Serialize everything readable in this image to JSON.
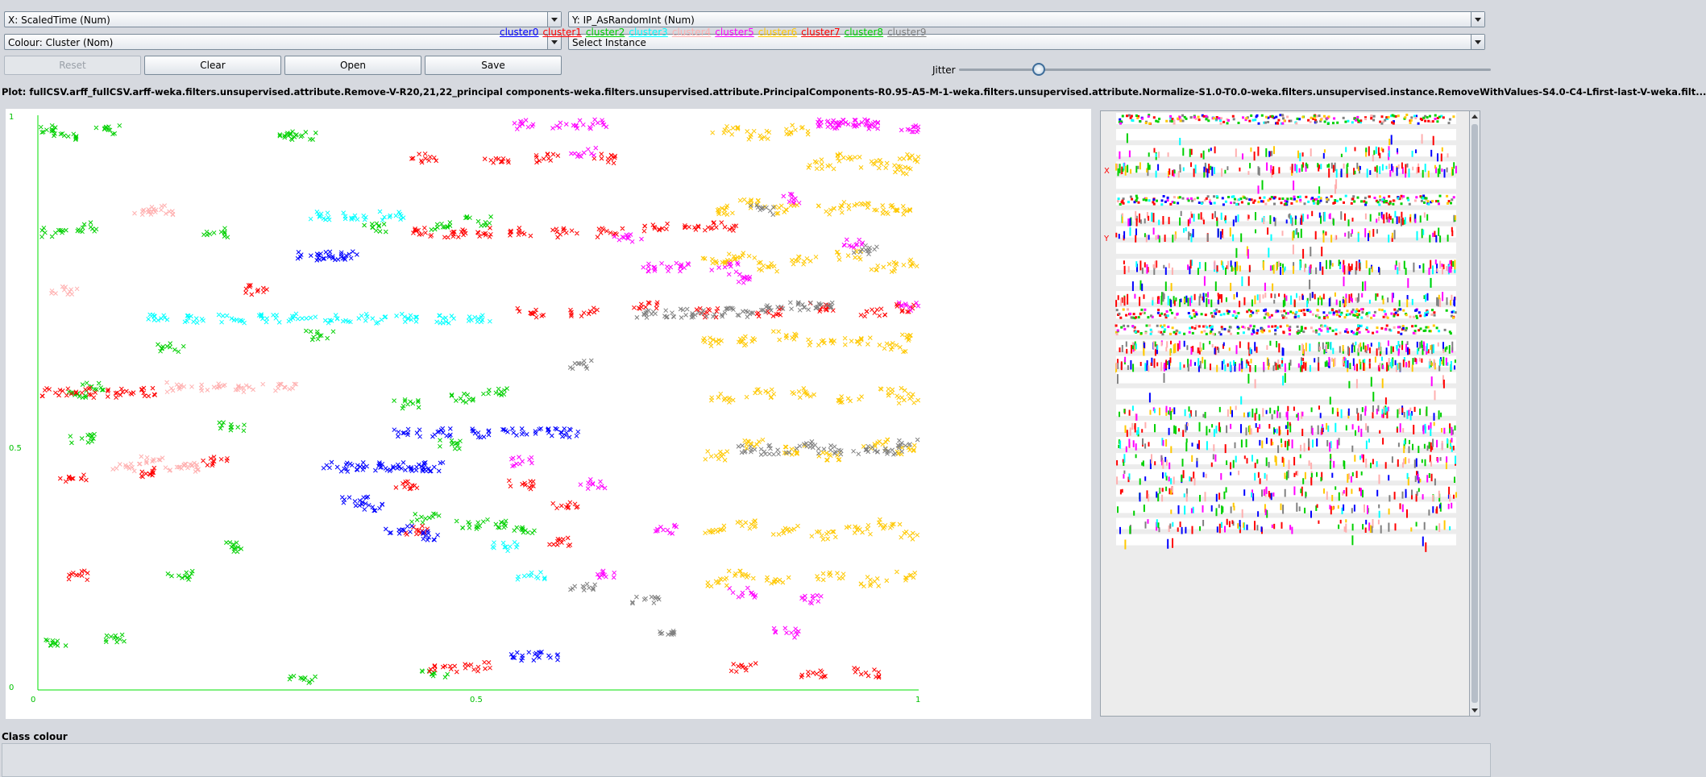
{
  "controls": {
    "x_axis": "X: ScaledTime (Num)",
    "y_axis": "Y: IP_AsRandomInt (Num)",
    "colour": "Colour: Cluster (Nom)",
    "instance": "Select Instance",
    "reset": "Reset",
    "clear": "Clear",
    "open": "Open",
    "save": "Save",
    "jitter_label": "Jitter",
    "jitter_value": 0.15
  },
  "plot_title": "Plot: fullCSV.arff_fullCSV.arff-weka.filters.unsupervised.attribute.Remove-V-R20,21,22_principal components-weka.filters.unsupervised.attribute.PrincipalComponents-R0.95-A5-M-1-weka.filters.unsupervised.attribute.Normalize-S1.0-T0.0-weka.filters.unsupervised.instance.RemoveWithValues-S4.0-C4-Lfirst-last-V-weka.filt...",
  "axis": {
    "x_ticks": [
      "0",
      "0.5",
      "1"
    ],
    "y_ticks": [
      "1",
      "0.5",
      "0"
    ]
  },
  "side_markers": {
    "x": "X",
    "y": "Y"
  },
  "class_colour_label": "Class colour",
  "legend": [
    {
      "name": "cluster0",
      "color": "#0000ff"
    },
    {
      "name": "cluster1",
      "color": "#ff0000"
    },
    {
      "name": "cluster2",
      "color": "#00d000"
    },
    {
      "name": "cluster3",
      "color": "#00ffff"
    },
    {
      "name": "cluster4",
      "color": "#ffafaf"
    },
    {
      "name": "cluster5",
      "color": "#ff00ff"
    },
    {
      "name": "cluster6",
      "color": "#ffc800"
    },
    {
      "name": "cluster7",
      "color": "#ff0000"
    },
    {
      "name": "cluster8",
      "color": "#00d000"
    },
    {
      "name": "cluster9",
      "color": "#808080"
    }
  ],
  "chart_data": {
    "type": "scatter",
    "xlabel": "ScaledTime",
    "ylabel": "IP_AsRandomInt",
    "xlim": [
      0,
      1
    ],
    "ylim": [
      0,
      1
    ],
    "x_ticks": [
      0,
      0.5,
      1
    ],
    "y_ticks": [
      0,
      0.5,
      1
    ],
    "marker": "x",
    "clusters": [
      {
        "color": "#00d000",
        "x": [
          0.01,
          0.03,
          0.08,
          0.28,
          0.3,
          0.02,
          0.06,
          0.2,
          0.38,
          0.46,
          0.5,
          0.15,
          0.32,
          0.04,
          0.06,
          0.42,
          0.48,
          0.52,
          0.05,
          0.22,
          0.47,
          0.44,
          0.49,
          0.52,
          0.55,
          0.02,
          0.09,
          0.16,
          0.22,
          0.3,
          0.45
        ],
        "y": [
          0.98,
          0.97,
          0.98,
          0.97,
          0.97,
          0.8,
          0.81,
          0.8,
          0.81,
          0.81,
          0.82,
          0.6,
          0.62,
          0.52,
          0.53,
          0.5,
          0.51,
          0.52,
          0.44,
          0.46,
          0.43,
          0.3,
          0.29,
          0.29,
          0.28,
          0.08,
          0.09,
          0.2,
          0.25,
          0.02,
          0.03
        ]
      },
      {
        "color": "#ff0000",
        "x": [
          0.02,
          0.05,
          0.09,
          0.12,
          0.44,
          0.47,
          0.5,
          0.55,
          0.6,
          0.65,
          0.7,
          0.75,
          0.78,
          0.56,
          0.62,
          0.69,
          0.76,
          0.83,
          0.89,
          0.95,
          0.99,
          0.44,
          0.52,
          0.58,
          0.64,
          0.04,
          0.13,
          0.2,
          0.42,
          0.55,
          0.6,
          0.43,
          0.59,
          0.05,
          0.46,
          0.5,
          0.8,
          0.88,
          0.94,
          0.25
        ],
        "y": [
          0.52,
          0.52,
          0.52,
          0.52,
          0.8,
          0.8,
          0.8,
          0.8,
          0.8,
          0.8,
          0.81,
          0.81,
          0.81,
          0.66,
          0.66,
          0.67,
          0.66,
          0.66,
          0.67,
          0.66,
          0.67,
          0.93,
          0.93,
          0.93,
          0.93,
          0.37,
          0.38,
          0.4,
          0.36,
          0.36,
          0.32,
          0.28,
          0.26,
          0.2,
          0.04,
          0.04,
          0.04,
          0.03,
          0.03,
          0.7
        ]
      },
      {
        "color": "#00ffff",
        "x": [
          0.14,
          0.18,
          0.22,
          0.26,
          0.3,
          0.34,
          0.38,
          0.42,
          0.46,
          0.5,
          0.32,
          0.36,
          0.4,
          0.53,
          0.56
        ],
        "y": [
          0.65,
          0.65,
          0.65,
          0.65,
          0.65,
          0.65,
          0.65,
          0.65,
          0.65,
          0.65,
          0.83,
          0.83,
          0.83,
          0.25,
          0.2
        ]
      },
      {
        "color": "#0000ff",
        "x": [
          0.31,
          0.33,
          0.35,
          0.34,
          0.37,
          0.39,
          0.41,
          0.43,
          0.45,
          0.42,
          0.46,
          0.5,
          0.54,
          0.58,
          0.6,
          0.36,
          0.38,
          0.41,
          0.44,
          0.55,
          0.58
        ],
        "y": [
          0.76,
          0.76,
          0.76,
          0.39,
          0.39,
          0.39,
          0.39,
          0.39,
          0.39,
          0.45,
          0.45,
          0.45,
          0.45,
          0.45,
          0.45,
          0.33,
          0.32,
          0.28,
          0.27,
          0.06,
          0.06
        ]
      },
      {
        "color": "#ffafaf",
        "x": [
          0.1,
          0.13,
          0.16,
          0.18,
          0.16,
          0.2,
          0.24,
          0.28,
          0.12,
          0.14,
          0.03
        ],
        "y": [
          0.39,
          0.4,
          0.39,
          0.39,
          0.53,
          0.53,
          0.53,
          0.53,
          0.84,
          0.84,
          0.7
        ]
      },
      {
        "color": "#ff00ff",
        "x": [
          0.55,
          0.6,
          0.63,
          0.62,
          0.67,
          0.73,
          0.8,
          0.86,
          0.9,
          0.92,
          0.94,
          0.99,
          0.63,
          0.71,
          0.8,
          0.85,
          0.9,
          0.94,
          0.99,
          0.64,
          0.7,
          0.78,
          0.55,
          0.88,
          0.93
        ],
        "y": [
          0.99,
          0.99,
          0.99,
          0.94,
          0.79,
          0.74,
          0.72,
          0.86,
          0.99,
          0.99,
          0.99,
          0.98,
          0.36,
          0.28,
          0.17,
          0.1,
          0.99,
          0.99,
          0.67,
          0.2,
          0.74,
          0.74,
          0.4,
          0.16,
          0.78
        ]
      },
      {
        "color": "#ffc800",
        "x": [
          0.78,
          0.82,
          0.86,
          0.89,
          0.92,
          0.95,
          0.98,
          0.99,
          0.78,
          0.81,
          0.85,
          0.9,
          0.93,
          0.96,
          0.99,
          0.77,
          0.8,
          0.83,
          0.87,
          0.92,
          0.96,
          0.99,
          0.77,
          0.8,
          0.85,
          0.89,
          0.93,
          0.97,
          0.99,
          0.78,
          0.82,
          0.87,
          0.92,
          0.97,
          0.99,
          0.77,
          0.81,
          0.86,
          0.9,
          0.95,
          0.99,
          0.77,
          0.81,
          0.85,
          0.89,
          0.93,
          0.97,
          0.99,
          0.77,
          0.8,
          0.84,
          0.9,
          0.95,
          0.99
        ],
        "y": [
          0.98,
          0.97,
          0.98,
          0.92,
          0.93,
          0.92,
          0.91,
          0.93,
          0.84,
          0.85,
          0.84,
          0.84,
          0.85,
          0.84,
          0.84,
          0.75,
          0.76,
          0.74,
          0.75,
          0.76,
          0.74,
          0.75,
          0.61,
          0.61,
          0.62,
          0.61,
          0.61,
          0.6,
          0.62,
          0.51,
          0.52,
          0.52,
          0.51,
          0.52,
          0.51,
          0.41,
          0.43,
          0.42,
          0.41,
          0.43,
          0.42,
          0.28,
          0.29,
          0.28,
          0.27,
          0.28,
          0.29,
          0.27,
          0.19,
          0.2,
          0.19,
          0.2,
          0.19,
          0.2
        ]
      },
      {
        "color": "#808080",
        "x": [
          0.69,
          0.72,
          0.75,
          0.78,
          0.81,
          0.84,
          0.87,
          0.9,
          0.62,
          0.81,
          0.84,
          0.87,
          0.9,
          0.94,
          0.97,
          0.99,
          0.62,
          0.69,
          0.72,
          0.82,
          0.94
        ],
        "y": [
          0.66,
          0.66,
          0.66,
          0.66,
          0.66,
          0.67,
          0.67,
          0.67,
          0.57,
          0.42,
          0.42,
          0.43,
          0.42,
          0.42,
          0.42,
          0.43,
          0.18,
          0.16,
          0.1,
          0.84,
          0.77
        ]
      }
    ]
  }
}
